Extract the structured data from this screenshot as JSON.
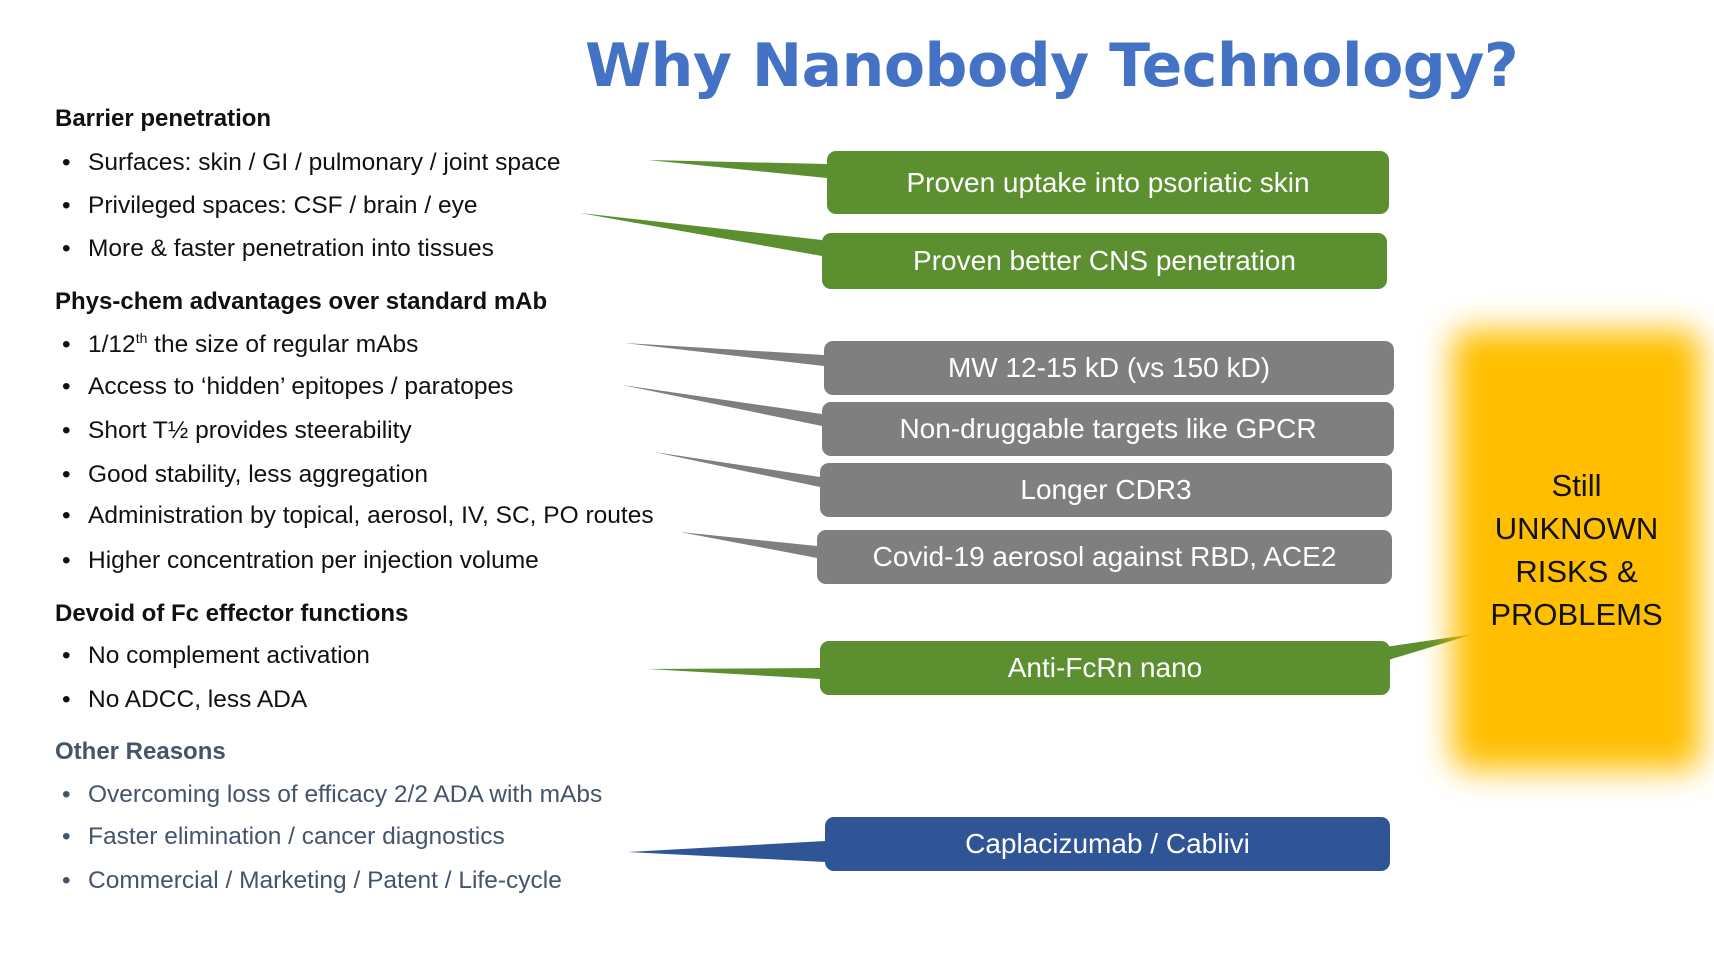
{
  "title": "Why Nanobody Technology?",
  "sections": {
    "barrier": {
      "heading": "Barrier penetration",
      "items": [
        "Surfaces: skin / GI / pulmonary / joint space",
        "Privileged spaces: CSF / brain / eye",
        "More & faster penetration into tissues"
      ]
    },
    "physchem": {
      "heading": "Phys-chem advantages over standard mAb",
      "items": [
        {
          "pre": "1/12",
          "sup": "th",
          "post": " the size of regular mAbs"
        },
        "Access to ‘hidden’ epitopes / paratopes",
        "Short T½ provides steerability",
        "Good stability, less aggregation",
        "Administration by topical, aerosol, IV, SC, PO routes",
        "Higher concentration per injection volume"
      ]
    },
    "devoid": {
      "heading": "Devoid of Fc effector functions",
      "items": [
        "No complement activation",
        "No ADCC, less ADA"
      ]
    },
    "other": {
      "heading": "Other Reasons",
      "items": [
        "Overcoming loss of efficacy 2/2 ADA with mAbs",
        "Faster elimination / cancer diagnostics",
        "Commercial / Marketing / Patent / Life-cycle"
      ]
    }
  },
  "bullet": "•",
  "callouts": {
    "psoriatic": "Proven uptake into psoriatic skin",
    "cns": "Proven better CNS penetration",
    "mw": "MW 12-15 kD (vs 150 kD)",
    "gpcr": "Non-druggable targets like GPCR",
    "cdr3": "Longer CDR3",
    "covid": "Covid-19 aerosol against RBD, ACE2",
    "fcrn": "Anti-FcRn nano",
    "caplacizumab": "Caplacizumab / Cablivi"
  },
  "risk_box": {
    "lines": [
      "Still",
      "UNKNOWN",
      "RISKS &",
      "PROBLEMS"
    ]
  },
  "colors": {
    "title": "#4472c4",
    "green": "#5b8f2f",
    "gray": "#7f7f7f",
    "blue": "#2f5597",
    "risk": "#ffbf00",
    "other_text": "#44546a"
  }
}
